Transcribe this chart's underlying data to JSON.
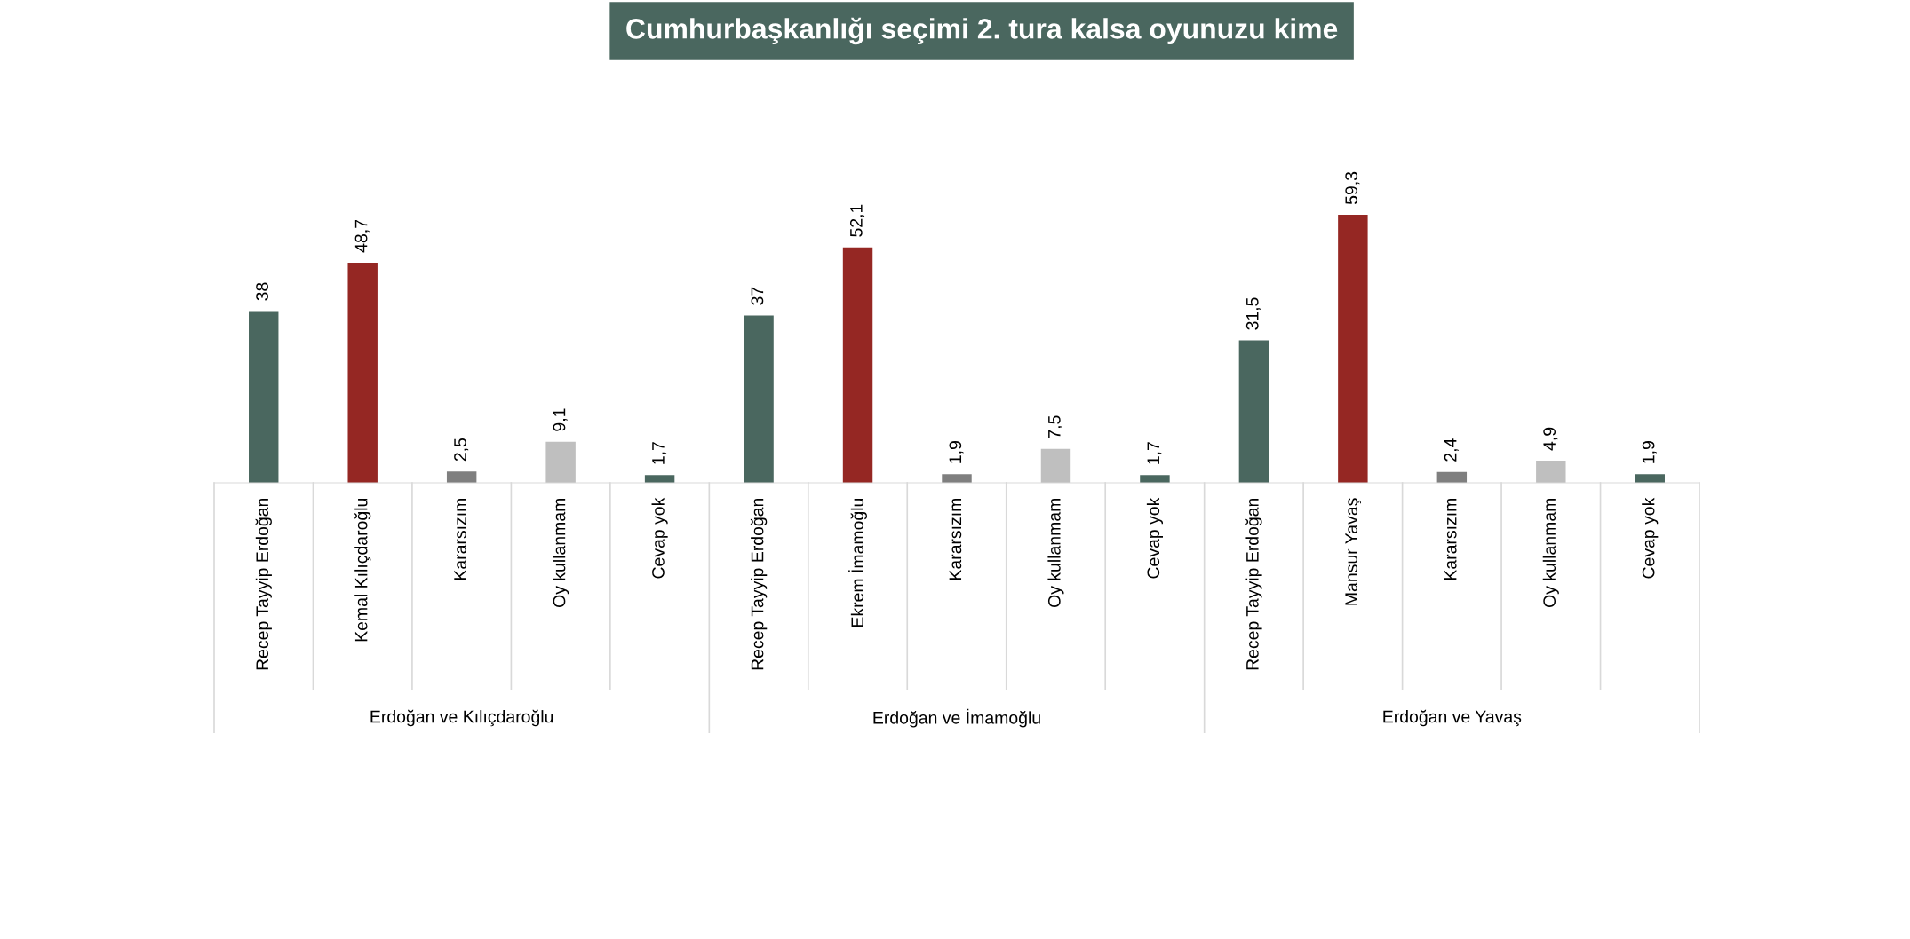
{
  "chart_data": {
    "type": "bar",
    "title": "Cumhurbaşkanlığı seçimi 2. tura kalsa oyunuzu kime",
    "categories": [
      "Recep Tayyip Erdoğan",
      "Kemal Kılıçdaroğlu",
      "Kararsızım",
      "Oy kullanmam",
      "Cevap yok",
      "Recep Tayyip Erdoğan",
      "Ekrem İmamoğlu",
      "Kararsızım",
      "Oy kullanmam",
      "Cevap yok",
      "Recep Tayyip Erdoğan",
      "Mansur Yavaş",
      "Kararsızım",
      "Oy kullanmam",
      "Cevap yok"
    ],
    "values": [
      38,
      48.7,
      2.5,
      9.1,
      1.7,
      37,
      52.1,
      1.9,
      7.5,
      1.7,
      31.5,
      59.3,
      2.4,
      4.9,
      1.9
    ],
    "value_labels": [
      "38",
      "48,7",
      "2,5",
      "9,1",
      "1,7",
      "37",
      "52,1",
      "1,9",
      "7,5",
      "1,7",
      "31,5",
      "59,3",
      "2,4",
      "4,9",
      "1,9"
    ],
    "colors": [
      "#4a675f",
      "#952723",
      "#7f7f7f",
      "#bfbfbf",
      "#4a675f",
      "#4a675f",
      "#952723",
      "#7f7f7f",
      "#bfbfbf",
      "#4a675f",
      "#4a675f",
      "#952723",
      "#7f7f7f",
      "#bfbfbf",
      "#4a675f"
    ],
    "annotations": [
      "Erdoğan ve Kılıçdaroğlu",
      "Erdoğan ve İmamoğlu",
      "Erdoğan ve Yavaş"
    ]
  }
}
